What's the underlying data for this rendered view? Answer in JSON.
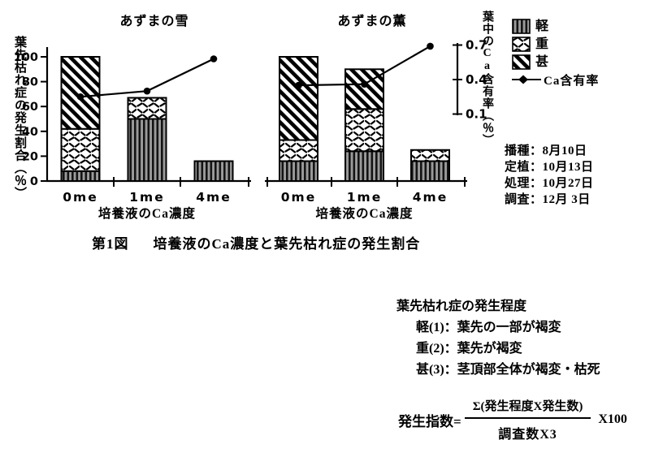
{
  "figure": {
    "caption_label": "第1図",
    "caption_text": "培養液のCa濃度と葉先枯れ症の発生割合"
  },
  "legend": {
    "items": [
      {
        "label": "軽",
        "pattern": "vertical-stripes"
      },
      {
        "label": "重",
        "pattern": "dash-hatch"
      },
      {
        "label": "甚",
        "pattern": "diagonal-stripes"
      }
    ],
    "line_label": "Ca含有率"
  },
  "ca_axis": {
    "label": "葉中のCa含有率（％）",
    "ticks": [
      "0.7",
      "0.4",
      "0.1"
    ],
    "range": [
      0.1,
      0.7
    ]
  },
  "dates": {
    "lines": [
      "播種：8月10日",
      "定植：10月13日",
      "処理：10月27日",
      "調査：12月 3日"
    ]
  },
  "severity_note": {
    "heading": "葉先枯れ症の発生程度",
    "items": [
      "軽(1)：葉先の一部が褐変",
      "重(2)：葉先が褐変",
      "甚(3)：茎頂部全体が褐変・枯死"
    ]
  },
  "formula": {
    "lhs": "発生指数=",
    "numerator": "Σ(発生程度X発生数)",
    "denominator": "調査数X3",
    "multiplier": "X100"
  },
  "chart_data": [
    {
      "type": "bar",
      "title": "あずまの雪",
      "categories": [
        "0me",
        "1me",
        "4me"
      ],
      "series": [
        {
          "name": "軽",
          "values": [
            8,
            50,
            16
          ]
        },
        {
          "name": "重",
          "values": [
            34,
            17,
            0
          ]
        },
        {
          "name": "甚",
          "values": [
            58,
            0,
            0
          ]
        }
      ],
      "line_series": {
        "name": "Ca含有率",
        "axis": "right",
        "values": [
          0.25,
          0.3,
          0.58
        ]
      },
      "xlabel": "培養液のCa濃度",
      "ylabel": "葉先枯れ症の発生割合（％）",
      "ylim": [
        0,
        100
      ],
      "yticks": [
        0,
        20,
        40,
        60,
        80,
        100
      ],
      "grid": false,
      "stacked": true
    },
    {
      "type": "bar",
      "title": "あずまの薫",
      "categories": [
        "0me",
        "1me",
        "4me"
      ],
      "series": [
        {
          "name": "軽",
          "values": [
            16,
            24,
            16
          ]
        },
        {
          "name": "重",
          "values": [
            17,
            34,
            9
          ]
        },
        {
          "name": "甚",
          "values": [
            67,
            32,
            0
          ]
        }
      ],
      "line_series": {
        "name": "Ca含有率",
        "axis": "right",
        "values": [
          0.35,
          0.36,
          0.69
        ]
      },
      "xlabel": "培養液のCa濃度",
      "ylabel": "葉先枯れ症の発生割合（％）",
      "ylim": [
        0,
        100
      ],
      "yticks": [
        0,
        20,
        40,
        60,
        80,
        100
      ],
      "grid": false,
      "stacked": true
    }
  ]
}
